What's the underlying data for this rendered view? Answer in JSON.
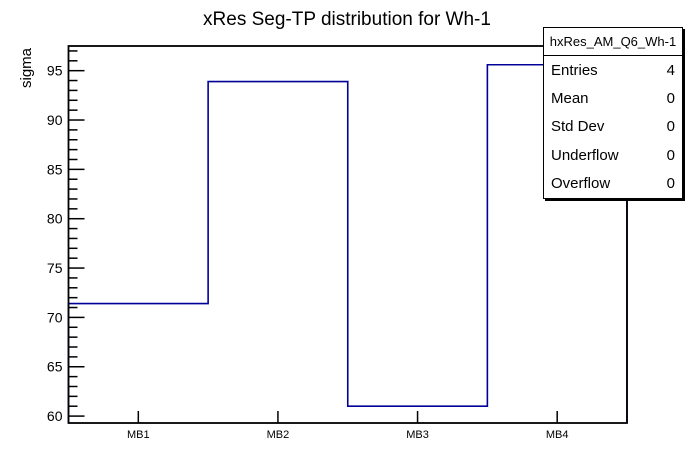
{
  "page": {
    "background": "#ffffff",
    "frame_color": "#000000"
  },
  "chart_data": {
    "type": "bar",
    "render_style": "step-outline-histogram",
    "title": "xRes Seg-TP distribution for Wh-1",
    "xlabel": "",
    "ylabel": "sigma",
    "categories": [
      "MB1",
      "MB2",
      "MB3",
      "MB4"
    ],
    "values": [
      71.4,
      93.9,
      61.0,
      95.6
    ],
    "ylim": [
      59.3,
      97.5
    ],
    "ytick_major_step": 5,
    "ytick_minor_step": 1,
    "grid": false,
    "line_color": "#000099",
    "legend_position": "top-right"
  },
  "stats_box": {
    "header": "hxRes_AM_Q6_Wh-1",
    "rows": [
      {
        "label": "Entries",
        "value": "4"
      },
      {
        "label": "Mean",
        "value": "0"
      },
      {
        "label": "Std Dev",
        "value": "0"
      },
      {
        "label": "Underflow",
        "value": "0"
      },
      {
        "label": "Overflow",
        "value": "0"
      }
    ]
  }
}
